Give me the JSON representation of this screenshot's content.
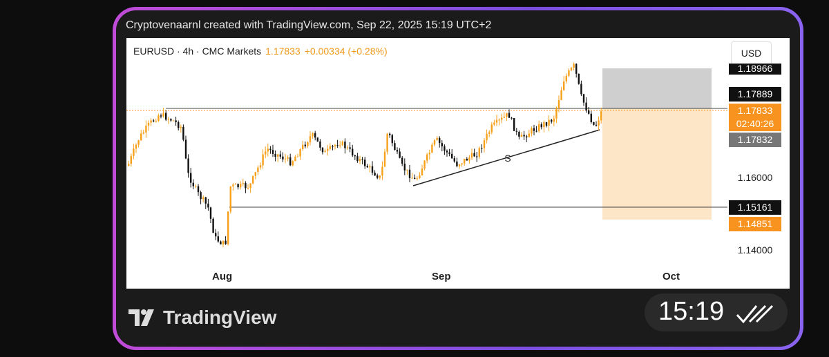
{
  "header": {
    "caption": "Cryptovenaarnl created with TradingView.com, Sep 22, 2025 15:19 UTC+2"
  },
  "symbol": {
    "name": "EURUSD · 4h · CMC Markets",
    "price": "1.17833",
    "change": "+0.00334 (+0.28%)"
  },
  "currency": "USD",
  "price_labels": [
    "1.18966",
    "1.17889",
    "1.17833",
    "02:40:26",
    "1.17832",
    "1.16000",
    "1.15161",
    "1.14851",
    "1.14000"
  ],
  "time_axis": [
    "Aug",
    "Sep",
    "Oct"
  ],
  "annotation": "S",
  "footer": {
    "brand": "TradingView",
    "time": "15:19"
  }
}
